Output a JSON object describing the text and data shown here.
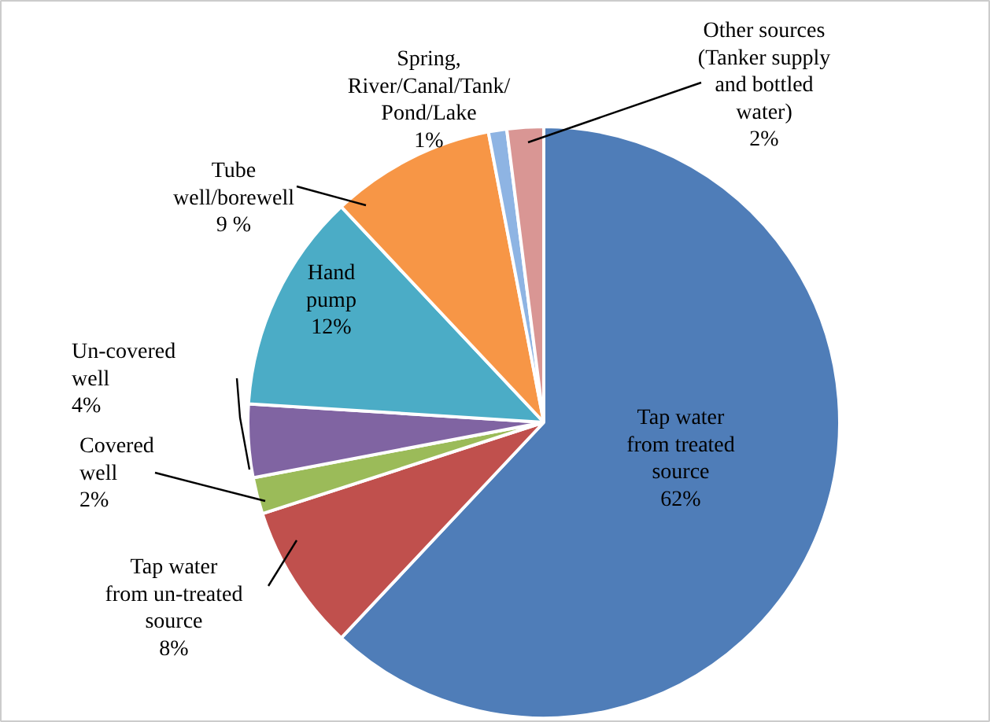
{
  "chart_data": {
    "type": "pie",
    "categories": [
      "Tap water\nfrom treated\nsource",
      "Tap water\nfrom un-treated\nsource",
      "Covered\nwell",
      "Un-covered\nwell",
      "Hand\npump",
      "Tube\nwell/borewell",
      "Spring,\nRiver/Canal/Tank/\nPond/Lake",
      "Other sources\n(Tanker supply\nand bottled\nwater)"
    ],
    "values": [
      62,
      8,
      2,
      4,
      12,
      9,
      1,
      2
    ],
    "value_labels": [
      "62%",
      "8%",
      "2%",
      "4%",
      "12%",
      "9 %",
      "1%",
      "2%"
    ],
    "colors": [
      "#4f7db8",
      "#c0504d",
      "#9bbb59",
      "#8064a2",
      "#4bacc6",
      "#f79646",
      "#8eb4e3",
      "#d99694"
    ]
  }
}
